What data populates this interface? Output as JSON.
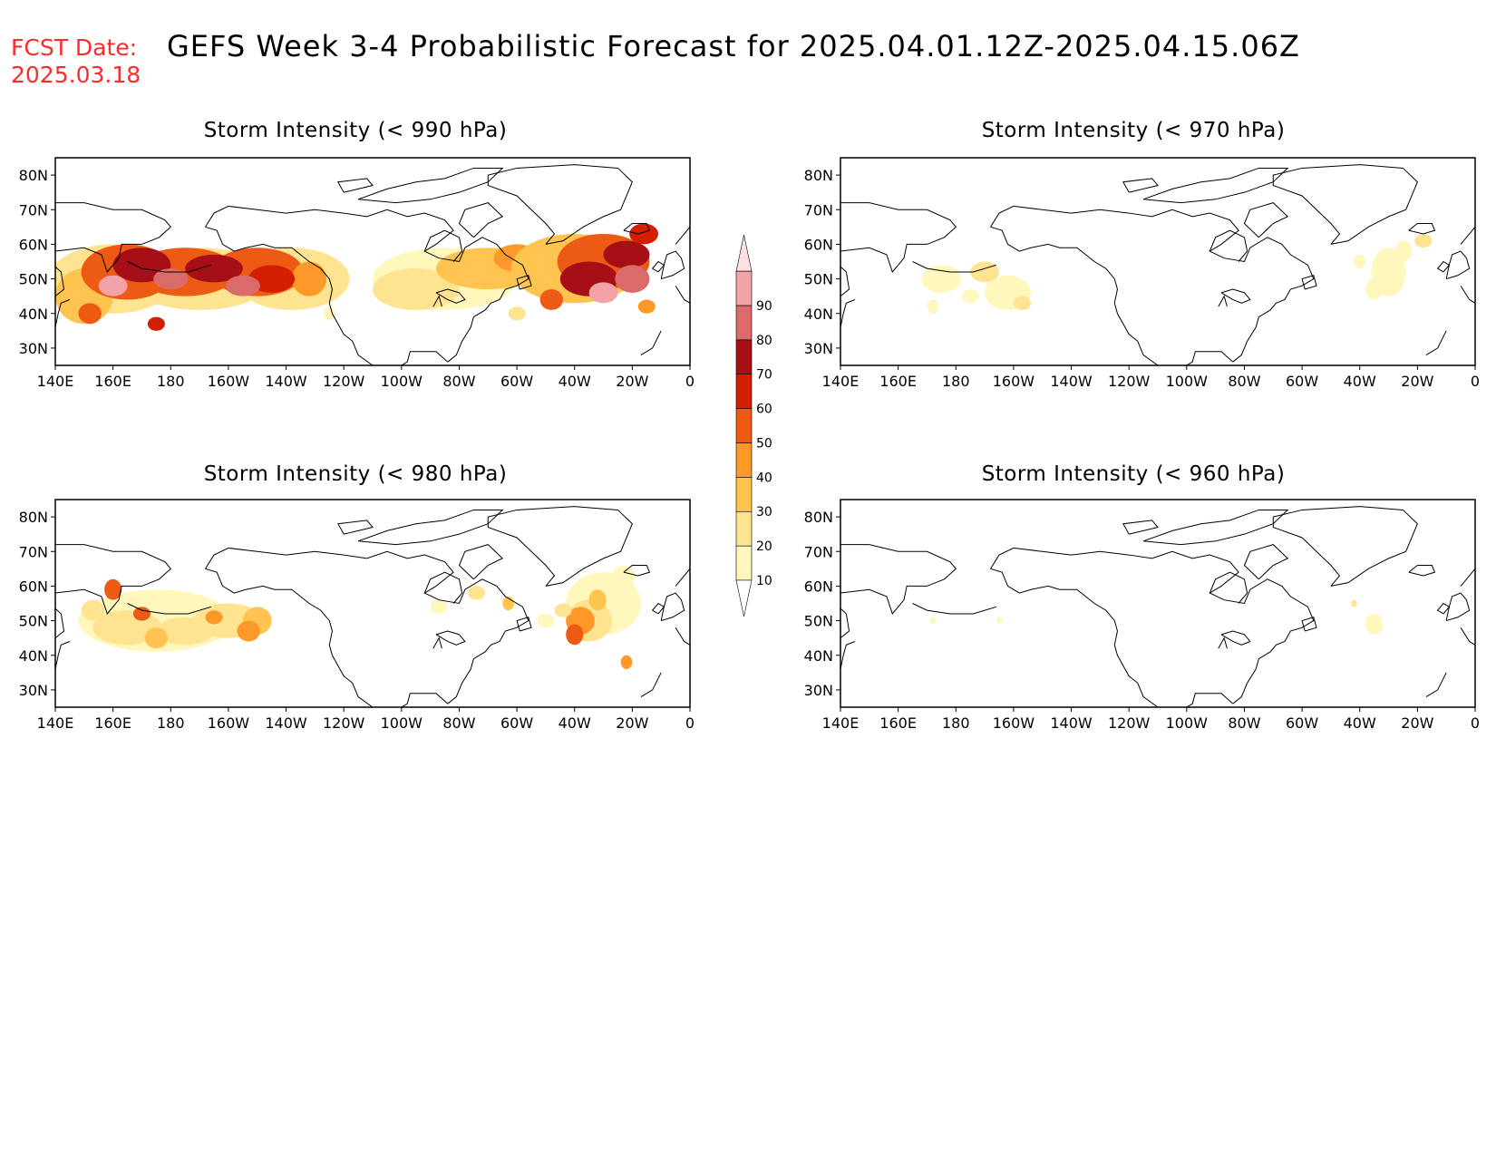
{
  "header": {
    "fcst_label": "FCST Date:",
    "fcst_date": "2025.03.18",
    "title": "GEFS Week 3-4 Probabilistic Forecast for 2025.04.01.12Z-2025.04.15.06Z"
  },
  "panels": [
    {
      "id": "p990",
      "title": "Storm Intensity (< 990 hPa)"
    },
    {
      "id": "p970",
      "title": "Storm Intensity (< 970 hPa)"
    },
    {
      "id": "p980",
      "title": "Storm Intensity (< 980 hPa)"
    },
    {
      "id": "p960",
      "title": "Storm Intensity (< 960 hPa)"
    }
  ],
  "axes": {
    "lat_labels": [
      "80N",
      "70N",
      "60N",
      "50N",
      "40N",
      "30N"
    ],
    "lat_values": [
      80,
      70,
      60,
      50,
      40,
      30
    ],
    "lon_labels": [
      "140E",
      "160E",
      "180",
      "160W",
      "140W",
      "120W",
      "100W",
      "80W",
      "60W",
      "40W",
      "20W",
      "0"
    ],
    "lat_range": [
      25,
      85
    ],
    "lon_range": [
      140,
      360
    ]
  },
  "colorbar": {
    "levels": [
      "10",
      "20",
      "30",
      "40",
      "50",
      "60",
      "70",
      "80",
      "90"
    ],
    "colors": [
      "#fff7bc",
      "#fee391",
      "#fec44f",
      "#fe9929",
      "#ec5a14",
      "#d41e00",
      "#a50f15",
      "#db6b6b",
      "#f3a3a8",
      "#fde0e3"
    ]
  },
  "map_colors": {
    "coast": "#000000",
    "frame": "#000000"
  }
}
